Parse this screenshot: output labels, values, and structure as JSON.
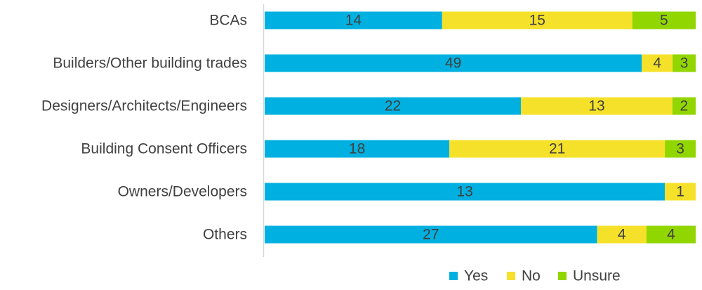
{
  "chart_data": {
    "type": "bar",
    "orientation": "horizontal",
    "stacking": "percent",
    "categories": [
      "BCAs",
      "Builders/Other building trades",
      "Designers/Architects/Engineers",
      "Building Consent Officers",
      "Owners/Developers",
      "Others"
    ],
    "series": [
      {
        "name": "Yes",
        "color": "#00b0e0",
        "values": [
          14,
          49,
          22,
          18,
          13,
          27
        ]
      },
      {
        "name": "No",
        "color": "#f5e12a",
        "values": [
          15,
          4,
          13,
          21,
          1,
          4
        ]
      },
      {
        "name": "Unsure",
        "color": "#92d600",
        "values": [
          5,
          3,
          2,
          3,
          0,
          4
        ]
      }
    ],
    "title": "",
    "xlabel": "",
    "ylabel": "",
    "grid": false,
    "legend": "bottom",
    "axis_color": "#d9d9d9",
    "label_color": "#404040"
  }
}
